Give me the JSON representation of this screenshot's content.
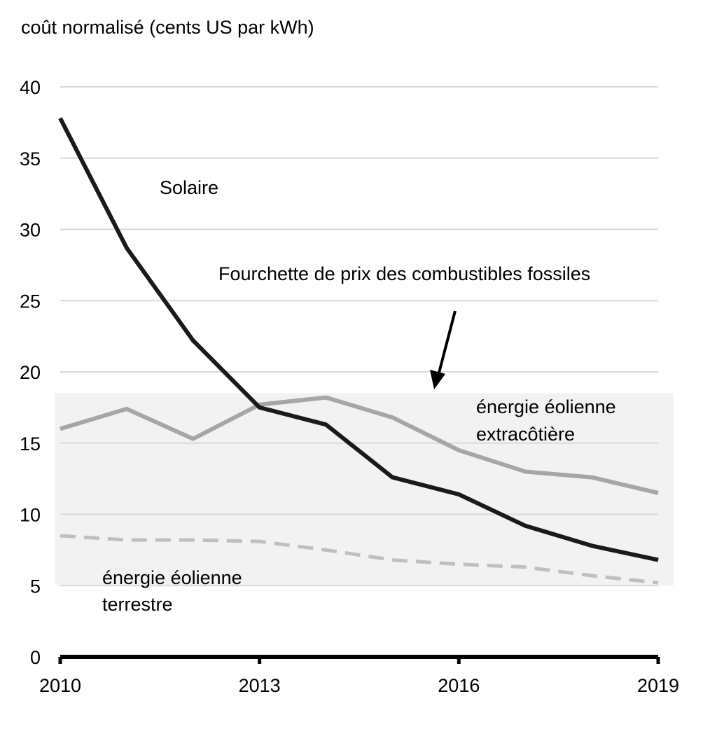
{
  "chart_data": {
    "type": "line",
    "ylabel": "coût normalisé (cents US par kWh)",
    "x": [
      2010,
      2011,
      2012,
      2013,
      2014,
      2015,
      2016,
      2017,
      2018,
      2019
    ],
    "x_ticks": [
      2010,
      2013,
      2016,
      2019
    ],
    "ylim": [
      0,
      40
    ],
    "y_ticks": [
      0,
      5,
      10,
      15,
      20,
      25,
      30,
      35,
      40
    ],
    "grid": true,
    "band": {
      "label": "Fourchette de prix des combustibles fossiles",
      "range": [
        5,
        18.5
      ],
      "color": "#f2f2f2"
    },
    "series": [
      {
        "name": "Solaire",
        "style": "solid",
        "color": "#1a1a1a",
        "values": [
          37.8,
          28.7,
          22.2,
          17.5,
          16.3,
          12.6,
          11.4,
          9.2,
          7.8,
          6.8
        ]
      },
      {
        "name": "énergie éolienne extracôtière",
        "style": "solid",
        "color": "#a6a6a6",
        "values": [
          16.0,
          17.4,
          15.3,
          17.7,
          18.2,
          16.8,
          14.5,
          13.0,
          12.6,
          11.5
        ]
      },
      {
        "name": "énergie éolienne terrestre",
        "style": "dashed",
        "color": "#bfbfbf",
        "values": [
          8.5,
          8.2,
          8.2,
          8.1,
          7.5,
          6.8,
          6.5,
          6.3,
          5.7,
          5.2
        ]
      }
    ],
    "annotations": {
      "solaire": "Solaire",
      "band_label": "Fourchette de prix des combustibles fossiles",
      "offshore_line1": "énergie éolienne",
      "offshore_line2": "extracôtière",
      "onshore_line1": "énergie éolienne",
      "onshore_line2": "terrestre"
    }
  }
}
